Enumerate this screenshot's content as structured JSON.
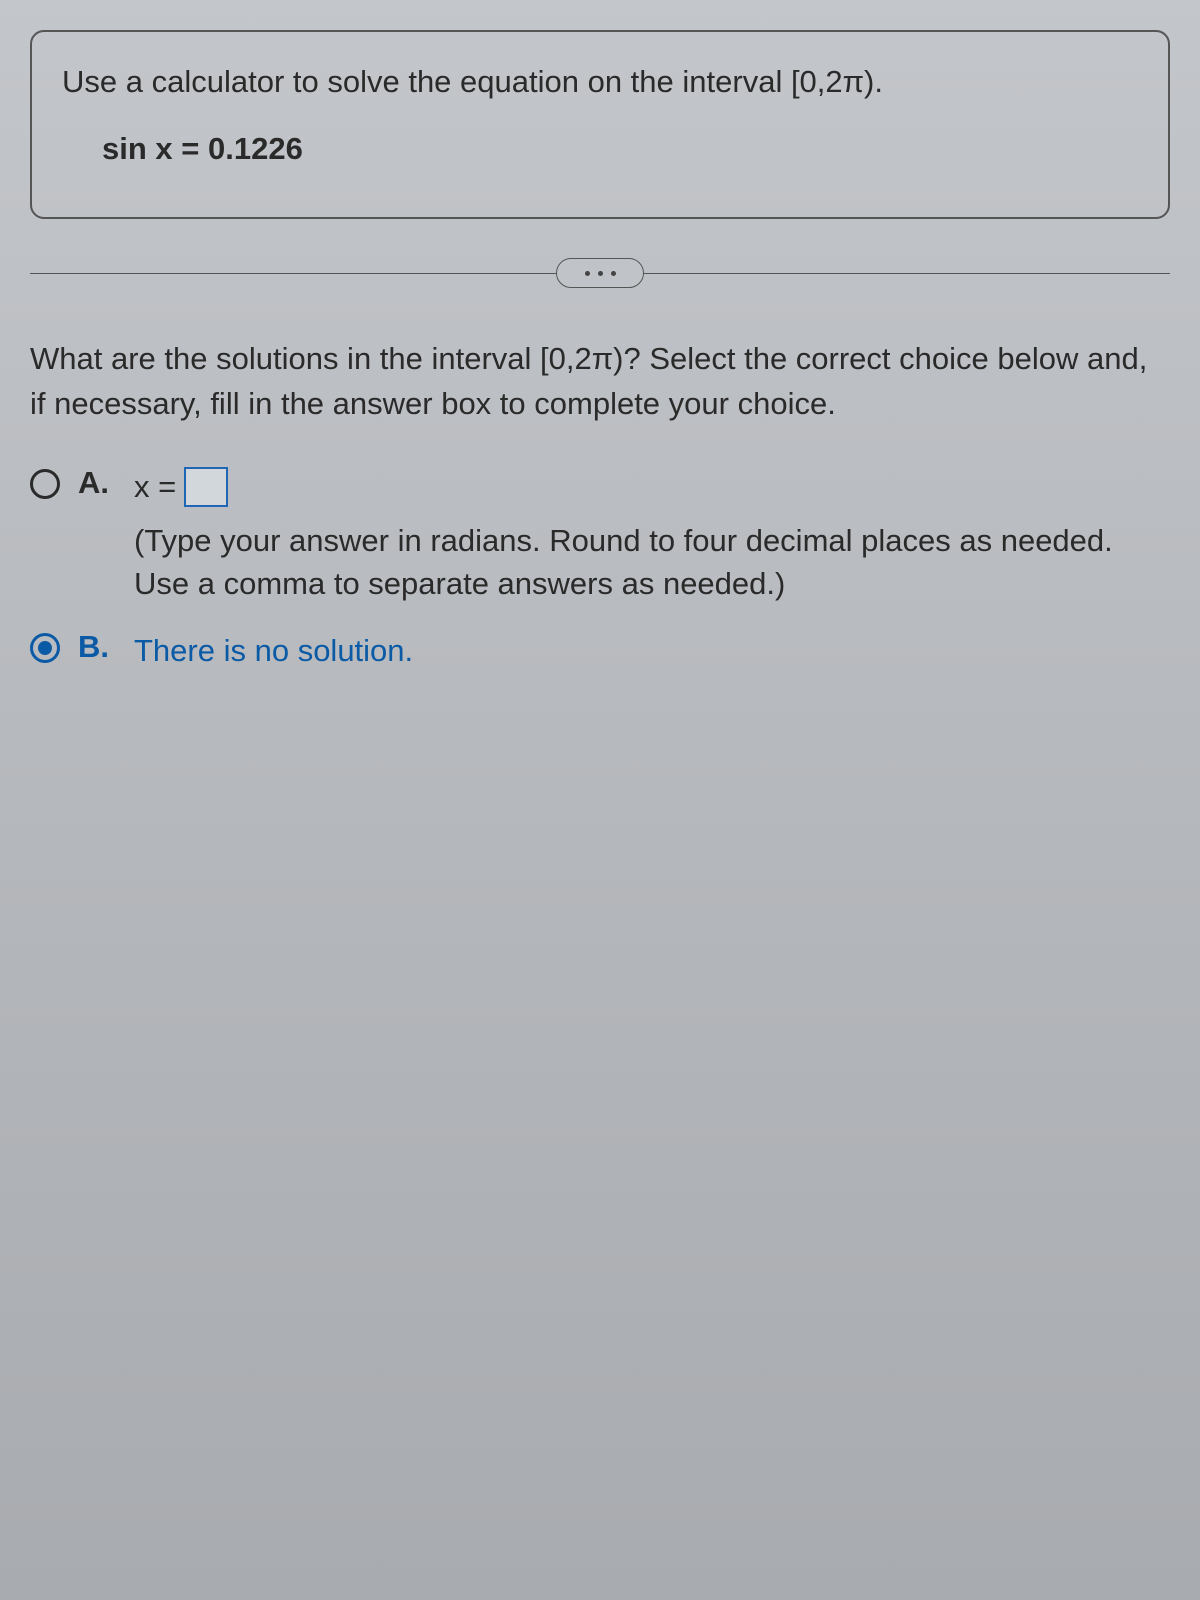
{
  "problem": {
    "prompt_text": "Use a calculator to solve the equation on the interval [0,2π).",
    "equation_lhs": "sin x",
    "equation_eq": "=",
    "equation_rhs": "0.1226"
  },
  "sub_question": "What are the solutions in the interval [0,2π)? Select the correct choice below and, if necessary, fill in the answer box to complete your choice.",
  "choices": {
    "a": {
      "letter": "A.",
      "prefix": "x =",
      "answer_value": "",
      "hint": "(Type your answer in radians. Round to four decimal places as needed. Use a comma to separate answers as needed.)",
      "selected": false
    },
    "b": {
      "letter": "B.",
      "text": "There is no solution.",
      "selected": true
    }
  },
  "colors": {
    "selected": "#0b5aa6",
    "border": "#555555",
    "text": "#2a2a2a",
    "input_border": "#1f67b5"
  }
}
